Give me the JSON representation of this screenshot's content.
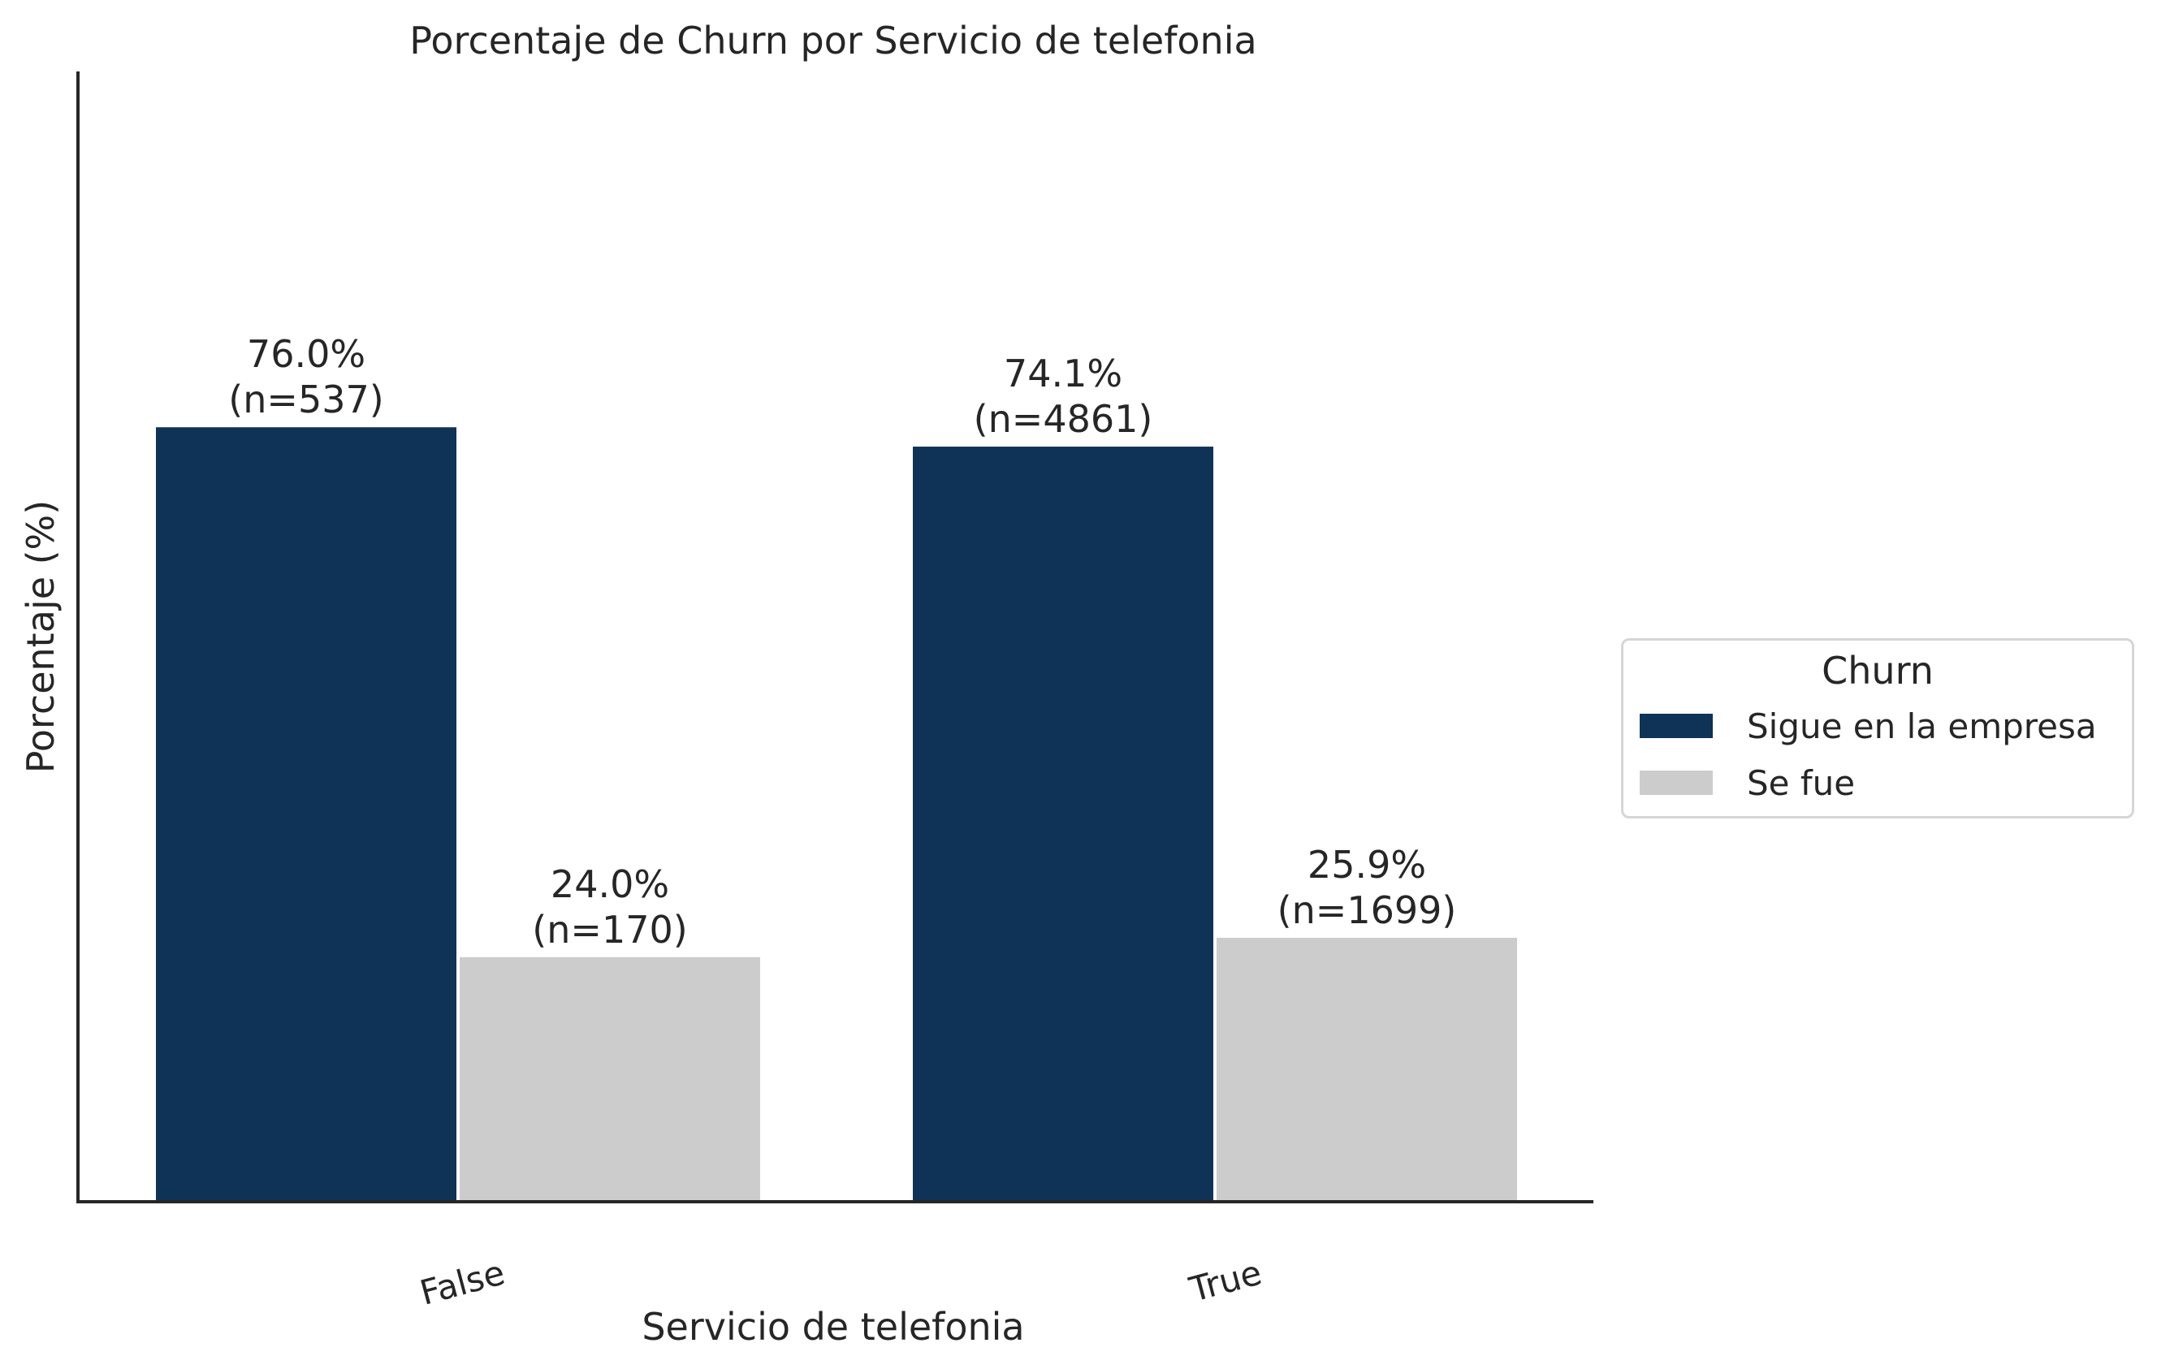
{
  "chart_data": {
    "type": "bar",
    "title": "Porcentaje de Churn por Servicio de telefonia",
    "xlabel": "Servicio de telefonia",
    "ylabel": "Porcentaje (%)",
    "categories": [
      "False",
      "True"
    ],
    "ylim": [
      0,
      100
    ],
    "grid": false,
    "legend": {
      "title": "Churn",
      "placement": "center-right-outside"
    },
    "series": [
      {
        "name": "Sigue en la empresa",
        "color": "#0f3357",
        "values": [
          76.0,
          74.1
        ],
        "labels": [
          "76.0%",
          "74.1%"
        ],
        "counts": [
          "(n=537)",
          "(n=4861)"
        ]
      },
      {
        "name": "Se fue",
        "color": "#cccccc",
        "values": [
          24.0,
          25.9
        ],
        "labels": [
          "24.0%",
          "25.9%"
        ],
        "counts": [
          "(n=170)",
          "(n=1699)"
        ]
      }
    ]
  }
}
